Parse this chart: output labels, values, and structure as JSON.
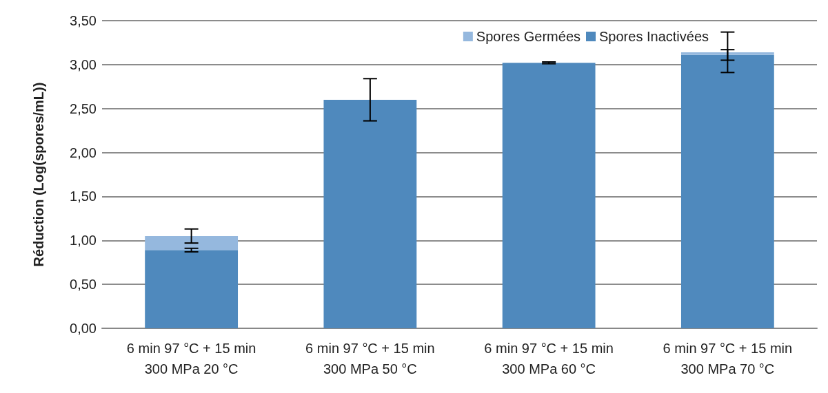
{
  "chart_data": {
    "type": "bar",
    "stacked": true,
    "ylabel": "Réduction (Log(spores/mL))",
    "categories": [
      "6 min 97 °C + 15 min\n300 MPa 20 °C",
      "6 min 97 °C + 15 min\n300 MPa 50 °C",
      "6 min 97 °C + 15 min\n300 MPa 60 °C",
      "6 min 97 °C + 15 min\n300 MPa 70 °C"
    ],
    "series": [
      {
        "name": "Spores Inactivées",
        "color": "#4f89bd",
        "values": [
          0.89,
          2.6,
          3.02,
          3.11
        ],
        "errors": [
          0.02,
          0.24,
          0.01,
          0.06
        ]
      },
      {
        "name": "Spores Germées",
        "color": "#95b8de",
        "values": [
          0.16,
          0,
          0,
          0.03
        ],
        "errors": [
          0.08,
          null,
          null,
          0.23
        ]
      }
    ],
    "ylim": [
      0,
      3.5
    ],
    "yticks": [
      {
        "value": 0,
        "label": "0,00"
      },
      {
        "value": 0.5,
        "label": "0,50"
      },
      {
        "value": 1,
        "label": "1,00"
      },
      {
        "value": 1.5,
        "label": "1,50"
      },
      {
        "value": 2,
        "label": "2,00"
      },
      {
        "value": 2.5,
        "label": "2,50"
      },
      {
        "value": 3,
        "label": "3,00"
      },
      {
        "value": 3.5,
        "label": "3,50"
      }
    ],
    "grid": "y",
    "legend": "top right"
  }
}
